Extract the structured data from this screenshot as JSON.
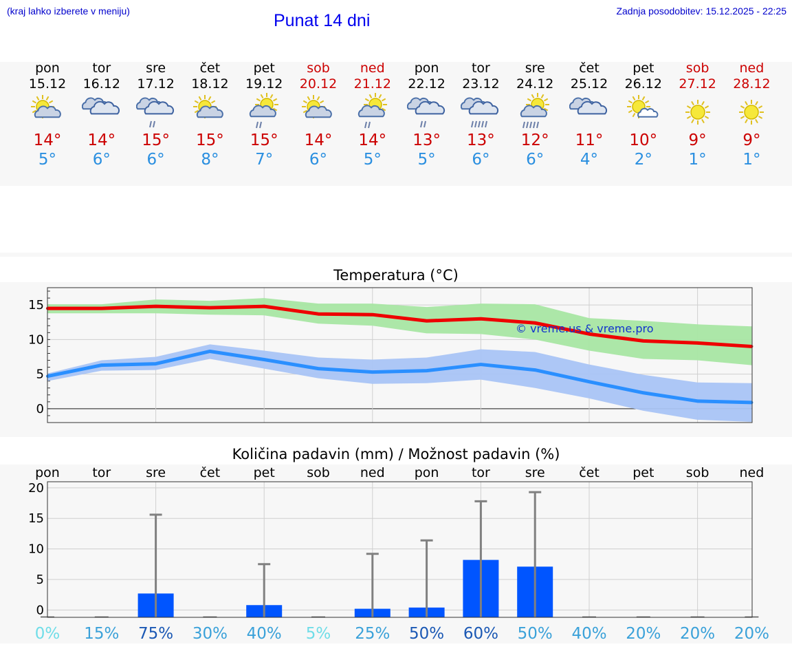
{
  "header": {
    "hint": "(kraj lahko izberete v meniju)",
    "title": "Punat 14 dni",
    "updated": "Zadnja posodobitev: 15.12.2025 - 22:25"
  },
  "days": [
    {
      "name": "pon",
      "date": "15.12",
      "icon": "sun-cloud-icon",
      "max": "14°",
      "min": "5°",
      "weekend": false
    },
    {
      "name": "tor",
      "date": "16.12",
      "icon": "cloud-icon",
      "max": "14°",
      "min": "6°",
      "weekend": false
    },
    {
      "name": "sre",
      "date": "17.12",
      "icon": "cloud-rain-icon",
      "max": "15°",
      "min": "6°",
      "weekend": false
    },
    {
      "name": "čet",
      "date": "18.12",
      "icon": "sun-cloud-icon",
      "max": "15°",
      "min": "8°",
      "weekend": false
    },
    {
      "name": "pet",
      "date": "19.12",
      "icon": "sun-cloud-rain-icon",
      "max": "15°",
      "min": "7°",
      "weekend": false
    },
    {
      "name": "sob",
      "date": "20.12",
      "icon": "sun-cloud-icon",
      "max": "14°",
      "min": "6°",
      "weekend": true
    },
    {
      "name": "ned",
      "date": "21.12",
      "icon": "sun-cloud-rain-icon",
      "max": "14°",
      "min": "5°",
      "weekend": true
    },
    {
      "name": "pon",
      "date": "22.12",
      "icon": "cloud-rain-icon",
      "max": "13°",
      "min": "5°",
      "weekend": false
    },
    {
      "name": "tor",
      "date": "23.12",
      "icon": "cloud-heavy-rain-icon",
      "max": "13°",
      "min": "6°",
      "weekend": false
    },
    {
      "name": "sre",
      "date": "24.12",
      "icon": "sun-cloud-heavy-rain-icon",
      "max": "12°",
      "min": "6°",
      "weekend": false
    },
    {
      "name": "čet",
      "date": "25.12",
      "icon": "cloud-icon",
      "max": "11°",
      "min": "4°",
      "weekend": false
    },
    {
      "name": "pet",
      "date": "26.12",
      "icon": "sun-small-cloud-icon",
      "max": "10°",
      "min": "2°",
      "weekend": false
    },
    {
      "name": "sob",
      "date": "27.12",
      "icon": "sun-icon",
      "max": "9°",
      "min": "1°",
      "weekend": true
    },
    {
      "name": "ned",
      "date": "28.12",
      "icon": "sun-icon",
      "max": "9°",
      "min": "1°",
      "weekend": true
    }
  ],
  "colors": {
    "max": "#ee0000",
    "max_band": "#a8e6a3",
    "min": "#2a8fff",
    "min_band": "#a9c4f5",
    "bar": "#0055ff",
    "whisker": "#808080"
  },
  "chart_data": [
    {
      "type": "line",
      "title": "Temperatura (°C)",
      "watermark": "© vreme.us & vreme.pro",
      "ylim": [
        -2,
        17.5
      ],
      "yticks": [
        0,
        5,
        10,
        15
      ],
      "x": [
        0,
        1,
        2,
        3,
        4,
        5,
        6,
        7,
        8,
        9,
        10,
        11,
        12,
        13
      ],
      "series": [
        {
          "name": "max",
          "values": [
            14.5,
            14.5,
            14.8,
            14.6,
            14.8,
            13.7,
            13.6,
            12.7,
            13.0,
            12.4,
            10.8,
            9.8,
            9.5,
            9.0
          ],
          "band_low": [
            13.8,
            13.8,
            13.8,
            13.6,
            13.5,
            12.3,
            12.0,
            10.9,
            10.8,
            10.0,
            8.4,
            7.2,
            7.0,
            6.3
          ],
          "band_high": [
            15.1,
            15.1,
            15.8,
            15.6,
            16.0,
            15.2,
            15.2,
            14.7,
            15.2,
            15.1,
            13.1,
            12.7,
            12.2,
            11.9
          ]
        },
        {
          "name": "min",
          "values": [
            4.7,
            6.3,
            6.5,
            8.3,
            7.1,
            5.8,
            5.3,
            5.5,
            6.4,
            5.6,
            3.9,
            2.3,
            1.1,
            0.9
          ],
          "band_low": [
            4.0,
            5.5,
            5.6,
            7.2,
            5.8,
            4.4,
            3.6,
            3.7,
            4.2,
            3.0,
            1.5,
            -0.3,
            -1.6,
            -1.9
          ],
          "band_high": [
            5.1,
            7.0,
            7.5,
            9.3,
            8.4,
            7.4,
            7.1,
            7.4,
            8.6,
            8.2,
            6.4,
            4.9,
            3.8,
            3.7
          ]
        }
      ]
    },
    {
      "type": "bar",
      "title": "Količina padavin (mm) / Možnost padavin (%)",
      "categories": [
        "pon",
        "tor",
        "sre",
        "čet",
        "pet",
        "sob",
        "ned",
        "pon",
        "tor",
        "sre",
        "čet",
        "pet",
        "sob",
        "ned"
      ],
      "ylim": [
        -1.2,
        21
      ],
      "yticks": [
        0,
        5,
        10,
        15,
        20
      ],
      "values": [
        0,
        0,
        2.7,
        0,
        0.8,
        0,
        0.2,
        0.4,
        8.2,
        7.1,
        0,
        0,
        0,
        0
      ],
      "whisker_max": [
        0,
        0,
        15.6,
        0,
        7.5,
        0,
        9.2,
        11.4,
        17.8,
        19.3,
        0,
        0,
        0,
        0
      ],
      "probability": [
        "0%",
        "15%",
        "75%",
        "30%",
        "40%",
        "5%",
        "25%",
        "50%",
        "60%",
        "50%",
        "40%",
        "20%",
        "20%",
        "20%"
      ],
      "probability_colors": [
        "#6fdde8",
        "#3aa1d9",
        "#1b58b4",
        "#3aa1d9",
        "#3aa1d9",
        "#6fdde8",
        "#3aa1d9",
        "#1b58b4",
        "#1b58b4",
        "#3aa1d9",
        "#3aa1d9",
        "#3aa1d9",
        "#3aa1d9",
        "#3aa1d9"
      ]
    }
  ]
}
